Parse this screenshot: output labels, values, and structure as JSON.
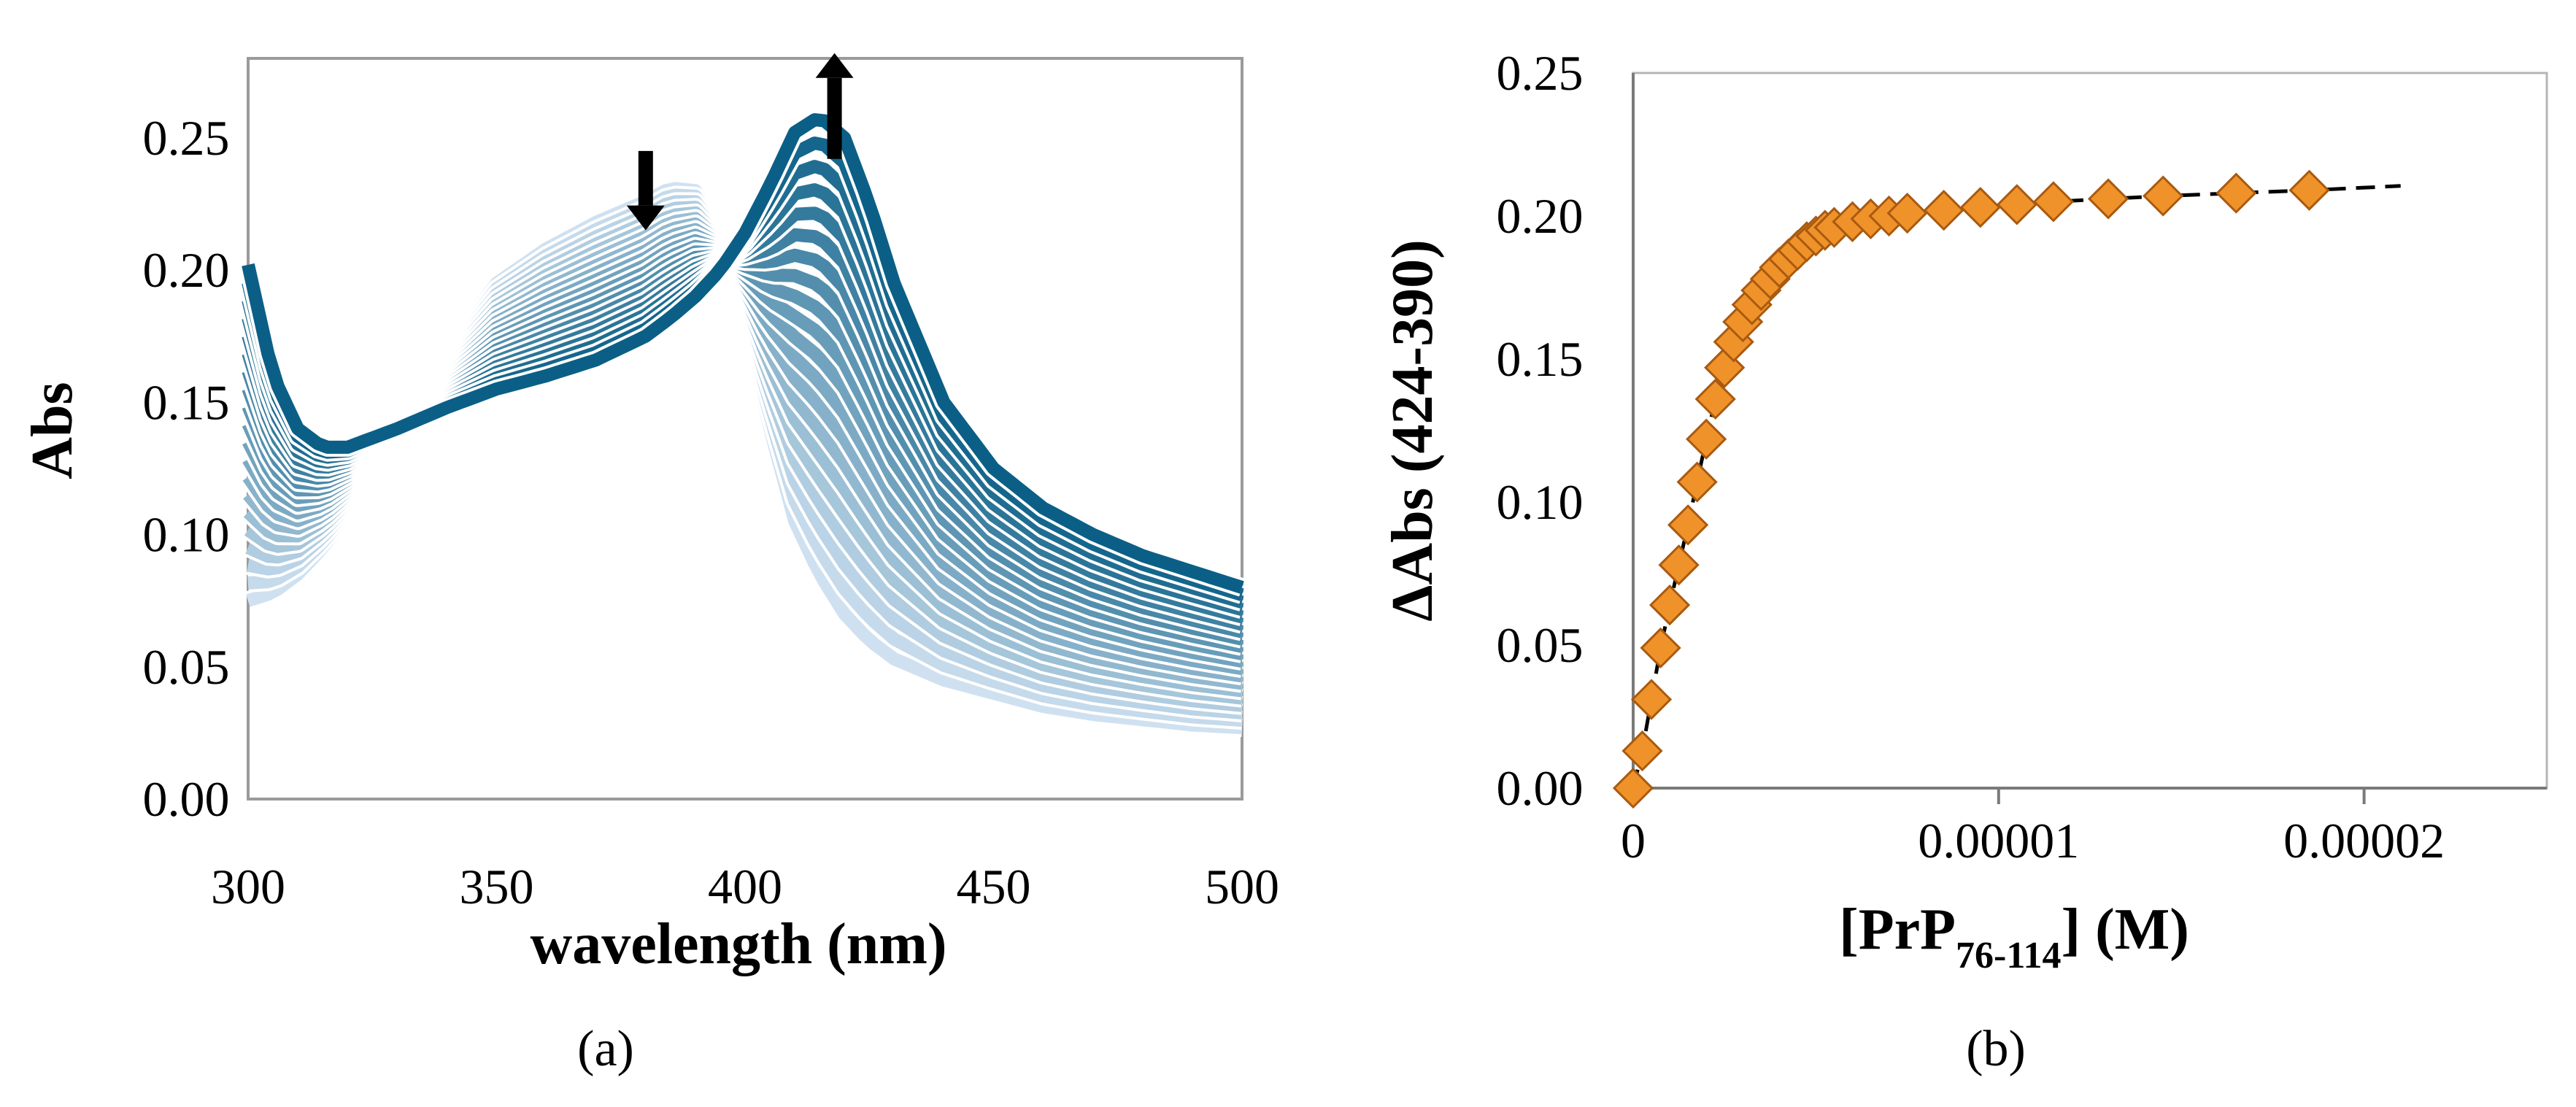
{
  "chart_data": [
    {
      "panel_label": "(a)",
      "type": "line",
      "xlabel": "wavelength (nm)",
      "ylabel": "Abs",
      "xlim": [
        300,
        500
      ],
      "ylim": [
        0,
        0.28
      ],
      "x_ticks": [
        "300",
        "350",
        "400",
        "450",
        "500"
      ],
      "y_ticks": [
        "0.00",
        "0.05",
        "0.10",
        "0.15",
        "0.20",
        "0.25"
      ],
      "grid": false,
      "curve_count": 20,
      "series_colors": {
        "start": "#cfe1f1",
        "end": "#0b5f86",
        "separator": "#ffffff"
      },
      "spectrum_initial": {
        "name": "initial (lightest)",
        "x": [
          300,
          305,
          310,
          315,
          320,
          330,
          340,
          350,
          360,
          370,
          380,
          385,
          390,
          395,
          400,
          405,
          410,
          415,
          420,
          425,
          430,
          440,
          450,
          460,
          470,
          480,
          490,
          500
        ],
        "y": [
          0.075,
          0.078,
          0.085,
          0.095,
          0.107,
          0.135,
          0.17,
          0.195,
          0.208,
          0.218,
          0.226,
          0.231,
          0.23,
          0.215,
          0.18,
          0.14,
          0.105,
          0.085,
          0.07,
          0.06,
          0.053,
          0.045,
          0.04,
          0.035,
          0.032,
          0.03,
          0.028,
          0.027
        ]
      },
      "spectrum_final": {
        "name": "final (darkest)",
        "x": [
          300,
          305,
          310,
          315,
          320,
          330,
          340,
          350,
          360,
          370,
          380,
          385,
          390,
          395,
          400,
          405,
          410,
          415,
          420,
          425,
          430,
          440,
          450,
          460,
          470,
          480,
          490,
          500
        ],
        "y": [
          0.202,
          0.16,
          0.14,
          0.133,
          0.133,
          0.14,
          0.148,
          0.155,
          0.16,
          0.166,
          0.175,
          0.182,
          0.19,
          0.2,
          0.214,
          0.232,
          0.252,
          0.258,
          0.25,
          0.225,
          0.195,
          0.15,
          0.125,
          0.11,
          0.1,
          0.092,
          0.086,
          0.08
        ]
      },
      "annotations": [
        {
          "type": "arrow",
          "direction": "down",
          "x": 380,
          "y_from": 0.245,
          "y_to": 0.215
        },
        {
          "type": "arrow",
          "direction": "up",
          "x": 418,
          "y_from": 0.242,
          "y_to": 0.282
        }
      ]
    },
    {
      "panel_label": "(b)",
      "type": "scatter",
      "xlabel": "[PrP76-114] (M)",
      "xlabel_main": "[PrP",
      "xlabel_sub": "76-114",
      "xlabel_tail": "] (M)",
      "ylabel": "ΔAbs (424-390)",
      "xlim": [
        0,
        2.5e-05
      ],
      "ylim": [
        0,
        0.25
      ],
      "x_ticks": [
        {
          "value": 0,
          "label": "0"
        },
        {
          "value": 1e-05,
          "label": "0.00001"
        },
        {
          "value": 2e-05,
          "label": "0.00002"
        }
      ],
      "y_ticks": [
        "0.00",
        "0.05",
        "0.10",
        "0.15",
        "0.20",
        "0.25"
      ],
      "grid": false,
      "marker": "diamond",
      "marker_color": "#f0922a",
      "fit_line": {
        "style": "dashed",
        "color": "#000000"
      },
      "x": [
        0,
        2.5e-07,
        5e-07,
        7.5e-07,
        1e-06,
        1.25e-06,
        1.5e-06,
        1.75e-06,
        2e-06,
        2.25e-06,
        2.5e-06,
        2.75e-06,
        3e-06,
        3.25e-06,
        3.5e-06,
        3.75e-06,
        4e-06,
        4.25e-06,
        4.5e-06,
        4.75e-06,
        5e-06,
        5.25e-06,
        5.5e-06,
        6e-06,
        6.5e-06,
        7e-06,
        7.5e-06,
        8.5e-06,
        9.5e-06,
        1.05e-05,
        1.15e-05,
        1.3e-05,
        1.45e-05,
        1.65e-05,
        1.85e-05
      ],
      "values": [
        0.0,
        0.013,
        0.031,
        0.049,
        0.064,
        0.078,
        0.092,
        0.107,
        0.122,
        0.136,
        0.147,
        0.156,
        0.163,
        0.169,
        0.174,
        0.178,
        0.182,
        0.185,
        0.188,
        0.191,
        0.193,
        0.195,
        0.196,
        0.198,
        0.199,
        0.2,
        0.201,
        0.202,
        0.203,
        0.204,
        0.205,
        0.206,
        0.207,
        0.208,
        0.209
      ]
    }
  ]
}
